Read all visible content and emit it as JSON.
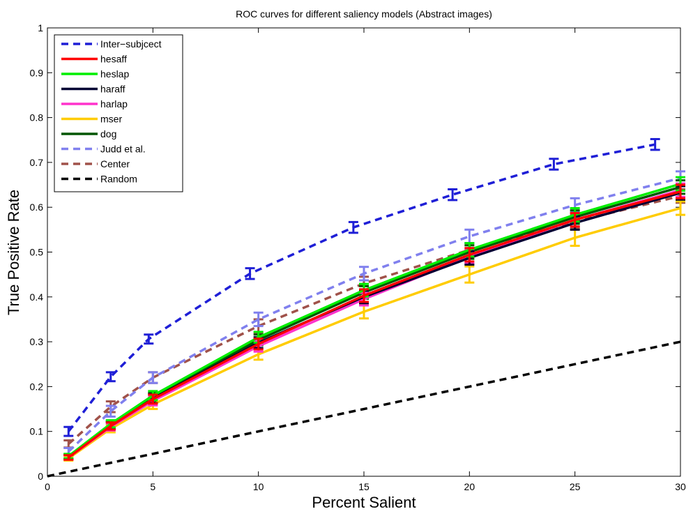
{
  "chart_data": {
    "type": "line",
    "title": "ROC curves for different saliency models (Abstract images)",
    "xlabel": "Percent Salient",
    "ylabel": "True Positive Rate",
    "xlim": [
      0,
      30
    ],
    "ylim": [
      0,
      1
    ],
    "xticks": [
      0,
      5,
      10,
      15,
      20,
      25,
      30
    ],
    "yticks": [
      0,
      0.1,
      0.2,
      0.3,
      0.4,
      0.5,
      0.6,
      0.7,
      0.8,
      0.9,
      1
    ],
    "xtick_labels": [
      "0",
      "5",
      "10",
      "15",
      "20",
      "25",
      "30"
    ],
    "ytick_labels": [
      "0",
      "0.1",
      "0.2",
      "0.3",
      "0.4",
      "0.5",
      "0.6",
      "0.7",
      "0.8",
      "0.9",
      "1"
    ],
    "legend_position": "top-left",
    "grid": false,
    "series": [
      {
        "name": "Inter−subjcect",
        "color": "#1f1fd6",
        "dash": "dashed",
        "x": [
          1,
          3,
          4.8,
          9.6,
          14.5,
          19.2,
          24,
          28.8
        ],
        "y": [
          0.1,
          0.222,
          0.306,
          0.452,
          0.555,
          0.628,
          0.696,
          0.74
        ],
        "err": [
          0.01,
          0.01,
          0.01,
          0.012,
          0.012,
          0.012,
          0.012,
          0.012
        ]
      },
      {
        "name": "hesaff",
        "color": "#ff0000",
        "dash": "solid",
        "x": [
          1,
          3,
          5,
          10,
          15,
          20,
          25,
          30
        ],
        "y": [
          0.042,
          0.112,
          0.172,
          0.295,
          0.403,
          0.494,
          0.572,
          0.635
        ],
        "err": [
          0.005,
          0.008,
          0.01,
          0.012,
          0.014,
          0.015,
          0.015,
          0.015
        ]
      },
      {
        "name": "heslap",
        "color": "#00ee00",
        "dash": "solid",
        "x": [
          1,
          3,
          5,
          10,
          15,
          20,
          25,
          30
        ],
        "y": [
          0.045,
          0.117,
          0.18,
          0.31,
          0.415,
          0.505,
          0.583,
          0.652
        ],
        "err": [
          0.005,
          0.008,
          0.01,
          0.012,
          0.014,
          0.015,
          0.015,
          0.015
        ]
      },
      {
        "name": "haraff",
        "color": "#000033",
        "dash": "solid",
        "x": [
          1,
          3,
          5,
          10,
          15,
          20,
          25,
          30
        ],
        "y": [
          0.043,
          0.113,
          0.173,
          0.298,
          0.4,
          0.487,
          0.565,
          0.632
        ],
        "err": [
          0.005,
          0.008,
          0.01,
          0.012,
          0.014,
          0.015,
          0.015,
          0.015
        ]
      },
      {
        "name": "harlap",
        "color": "#ff33cc",
        "dash": "solid",
        "x": [
          1,
          3,
          5,
          10,
          15,
          20,
          25,
          30
        ],
        "y": [
          0.042,
          0.11,
          0.168,
          0.29,
          0.395,
          0.49,
          0.572,
          0.638
        ],
        "err": [
          0.005,
          0.008,
          0.01,
          0.012,
          0.014,
          0.015,
          0.015,
          0.015
        ]
      },
      {
        "name": "mser",
        "color": "#ffcc00",
        "dash": "solid",
        "x": [
          1,
          3,
          5,
          10,
          15,
          20,
          25,
          30
        ],
        "y": [
          0.04,
          0.106,
          0.16,
          0.272,
          0.367,
          0.45,
          0.532,
          0.598
        ],
        "err": [
          0.005,
          0.008,
          0.01,
          0.012,
          0.015,
          0.018,
          0.018,
          0.015
        ]
      },
      {
        "name": "dog",
        "color": "#005500",
        "dash": "solid",
        "x": [
          1,
          3,
          5,
          10,
          15,
          20,
          25,
          30
        ],
        "y": [
          0.044,
          0.115,
          0.176,
          0.304,
          0.41,
          0.5,
          0.578,
          0.645
        ],
        "err": [
          0.005,
          0.008,
          0.01,
          0.012,
          0.014,
          0.015,
          0.015,
          0.015
        ]
      },
      {
        "name": "Judd et al.",
        "color": "#8080ee",
        "dash": "dashed",
        "x": [
          1,
          3,
          5,
          10,
          15,
          20,
          25,
          30
        ],
        "y": [
          0.055,
          0.145,
          0.22,
          0.35,
          0.452,
          0.535,
          0.605,
          0.665
        ],
        "err": [
          0.008,
          0.012,
          0.012,
          0.015,
          0.015,
          0.015,
          0.015,
          0.015
        ]
      },
      {
        "name": "Center",
        "color": "#a0524a",
        "dash": "dashed",
        "x": [
          1,
          3,
          5,
          10,
          15,
          20,
          25,
          30
        ],
        "y": [
          0.072,
          0.155,
          0.22,
          0.335,
          0.43,
          0.505,
          0.568,
          0.625
        ],
        "err": [
          0.008,
          0.012,
          0.012,
          0.015,
          0.015,
          0.015,
          0.015,
          0.015
        ]
      },
      {
        "name": "Random",
        "color": "#000000",
        "dash": "dashed",
        "x": [
          0,
          30
        ],
        "y": [
          0,
          0.3
        ],
        "err": null
      }
    ]
  }
}
